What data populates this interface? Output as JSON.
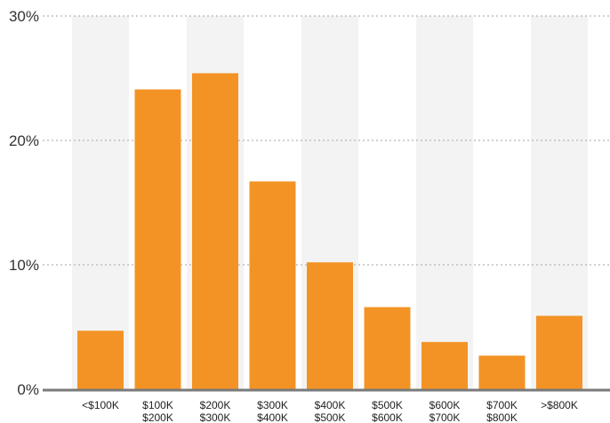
{
  "chart_data": {
    "type": "bar",
    "categories": [
      [
        "<$100K"
      ],
      [
        "$100K",
        "$200K"
      ],
      [
        "$200K",
        "$300K"
      ],
      [
        "$300K",
        "$400K"
      ],
      [
        "$400K",
        "$500K"
      ],
      [
        "$500K",
        "$600K"
      ],
      [
        "$600K",
        "$700K"
      ],
      [
        "$700K",
        "$800K"
      ],
      [
        ">$800K"
      ]
    ],
    "values": [
      4.7,
      24.1,
      25.4,
      16.7,
      10.2,
      6.6,
      3.8,
      2.7,
      5.9
    ],
    "ylim": [
      0,
      30
    ],
    "yticks": [
      0,
      10,
      20,
      30
    ],
    "ytick_labels": [
      "0%",
      "10%",
      "20%",
      "30%"
    ],
    "grid": true,
    "alternating_column_shading": true,
    "title": "",
    "xlabel": "",
    "ylabel": "",
    "colors": {
      "bar": "#f39325",
      "shade": "#f3f3f3",
      "grid": "#b5b5b5",
      "axis": "#7a7a7a"
    }
  }
}
